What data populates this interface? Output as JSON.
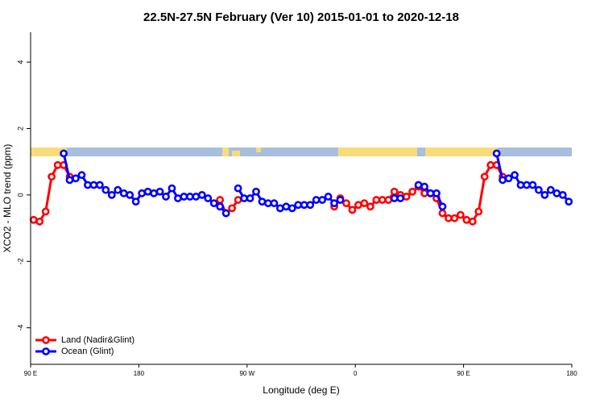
{
  "chart_data": {
    "type": "line",
    "title": "22.5N-27.5N February (Ver 10)   2015-01-01 to 2020-12-18",
    "x_label": "Longitude (deg E)",
    "y_label": "XCO2 - MLO trend (ppm)",
    "xlim": [
      90,
      540
    ],
    "ylim": [
      -5.1,
      4.9
    ],
    "xticks": [
      {
        "value": 90,
        "label": "90 E"
      },
      180,
      {
        "value": 270,
        "label": "90 W"
      },
      {
        "value": 360,
        "label": "0"
      },
      {
        "value": 450,
        "label": "90 E"
      },
      {
        "value": 540,
        "label": "180"
      }
    ],
    "yticks": [
      -4,
      -2,
      0,
      2,
      4
    ],
    "legend": "bottom left",
    "x": [
      92.5,
      97.5,
      102.5,
      107.5,
      112.5,
      117.5,
      122.5,
      127.5,
      132.5,
      137.5,
      142.5,
      147.5,
      152.5,
      157.5,
      162.5,
      167.5,
      172.5,
      177.5,
      182.5,
      187.5,
      192.5,
      197.5,
      202.5,
      207.5,
      212.5,
      217.5,
      222.5,
      227.5,
      232.5,
      237.5,
      242.5,
      247.5,
      252.5,
      257.5,
      262.5,
      267.5,
      272.5,
      277.5,
      282.5,
      287.5,
      292.5,
      297.5,
      302.5,
      307.5,
      312.5,
      317.5,
      322.5,
      327.5,
      332.5,
      337.5,
      342.5,
      347.5,
      352.5,
      357.5,
      362.5,
      367.5,
      372.5,
      377.5,
      382.5,
      387.5,
      392.5,
      397.5,
      402.5,
      407.5,
      412.5,
      417.5,
      422.5,
      427.5,
      432.5,
      437.5,
      442.5,
      447.5,
      452.5,
      457.5,
      462.5,
      467.5,
      472.5,
      477.5,
      482.5,
      487.5,
      492.5,
      497.5,
      502.5,
      507.5,
      512.5,
      517.5,
      522.5,
      527.5,
      532.5,
      537.5
    ],
    "series": [
      {
        "name": "Land (Nadir&Glint)",
        "color": "#ff0000",
        "values": [
          -0.75,
          -0.8,
          -0.5,
          0.55,
          0.9,
          0.9,
          0.55,
          null,
          null,
          null,
          null,
          null,
          null,
          null,
          null,
          null,
          null,
          null,
          null,
          null,
          null,
          null,
          null,
          null,
          null,
          null,
          null,
          null,
          null,
          null,
          null,
          -0.15,
          -0.55,
          -0.4,
          -0.15,
          null,
          null,
          null,
          null,
          null,
          null,
          null,
          null,
          null,
          null,
          null,
          null,
          null,
          null,
          null,
          -0.35,
          -0.1,
          -0.25,
          -0.45,
          -0.3,
          -0.25,
          -0.35,
          -0.15,
          -0.15,
          -0.15,
          0.1,
          0.0,
          -0.05,
          0.1,
          0.25,
          0.05,
          0.05,
          -0.1,
          -0.55,
          -0.7,
          -0.7,
          -0.6,
          -0.75,
          -0.8,
          -0.5,
          0.55,
          0.9,
          0.9,
          0.55,
          null,
          null,
          null,
          null,
          null,
          null,
          null,
          null,
          null,
          null,
          null
        ]
      },
      {
        "name": "Ocean (Glint)",
        "color": "#0000ff",
        "values": [
          null,
          null,
          null,
          null,
          null,
          1.25,
          0.45,
          0.5,
          0.6,
          0.3,
          0.3,
          0.3,
          0.15,
          0.0,
          0.15,
          0.05,
          0.0,
          -0.2,
          0.05,
          0.1,
          0.05,
          0.1,
          -0.05,
          0.2,
          -0.1,
          -0.05,
          -0.05,
          -0.05,
          0.0,
          -0.1,
          -0.25,
          -0.35,
          -0.55,
          null,
          0.2,
          -0.1,
          -0.1,
          0.1,
          -0.2,
          -0.25,
          -0.25,
          -0.4,
          -0.35,
          -0.4,
          -0.3,
          -0.3,
          -0.3,
          -0.15,
          -0.15,
          -0.05,
          -0.25,
          -0.15,
          null,
          null,
          null,
          null,
          null,
          null,
          null,
          null,
          -0.1,
          -0.1,
          null,
          null,
          0.3,
          0.25,
          0.05,
          0.05,
          -0.35,
          null,
          null,
          null,
          null,
          null,
          null,
          null,
          null,
          1.25,
          0.45,
          0.5,
          0.6,
          0.3,
          0.3,
          0.3,
          0.15,
          0.0,
          0.15,
          0.05,
          0.0,
          -0.2
        ]
      }
    ]
  }
}
